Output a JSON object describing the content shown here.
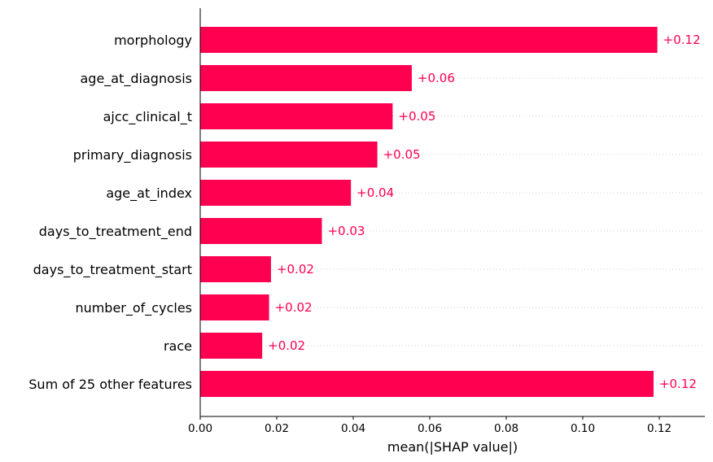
{
  "chart_data": {
    "type": "bar",
    "orientation": "horizontal",
    "categories": [
      "morphology",
      "age_at_diagnosis",
      "ajcc_clinical_t",
      "primary_diagnosis",
      "age_at_index",
      "days_to_treatment_end",
      "days_to_treatment_start",
      "number_of_cycles",
      "race",
      "Sum of 25 other features"
    ],
    "values": [
      0.1195,
      0.0553,
      0.0503,
      0.0463,
      0.0394,
      0.0318,
      0.0185,
      0.018,
      0.0162,
      0.1185
    ],
    "value_labels": [
      "+0.12",
      "+0.06",
      "+0.05",
      "+0.05",
      "+0.04",
      "+0.03",
      "+0.02",
      "+0.02",
      "+0.02",
      "+0.12"
    ],
    "xlabel": "mean(|SHAP value|)",
    "ylabel": "",
    "title": "",
    "xlim": [
      0,
      0.131
    ],
    "xticks": [
      0,
      0.02,
      0.04,
      0.06,
      0.08,
      0.1,
      0.12
    ],
    "xtick_labels": [
      "0.00",
      "0.02",
      "0.04",
      "0.06",
      "0.08",
      "0.10",
      "0.12"
    ],
    "grid": "dotted horizontal guide lines per row",
    "legend": "none",
    "colors": {
      "bar": "#ff0051",
      "label": "#ff0051",
      "guide": "#cccccc",
      "axis": "#000000"
    }
  }
}
